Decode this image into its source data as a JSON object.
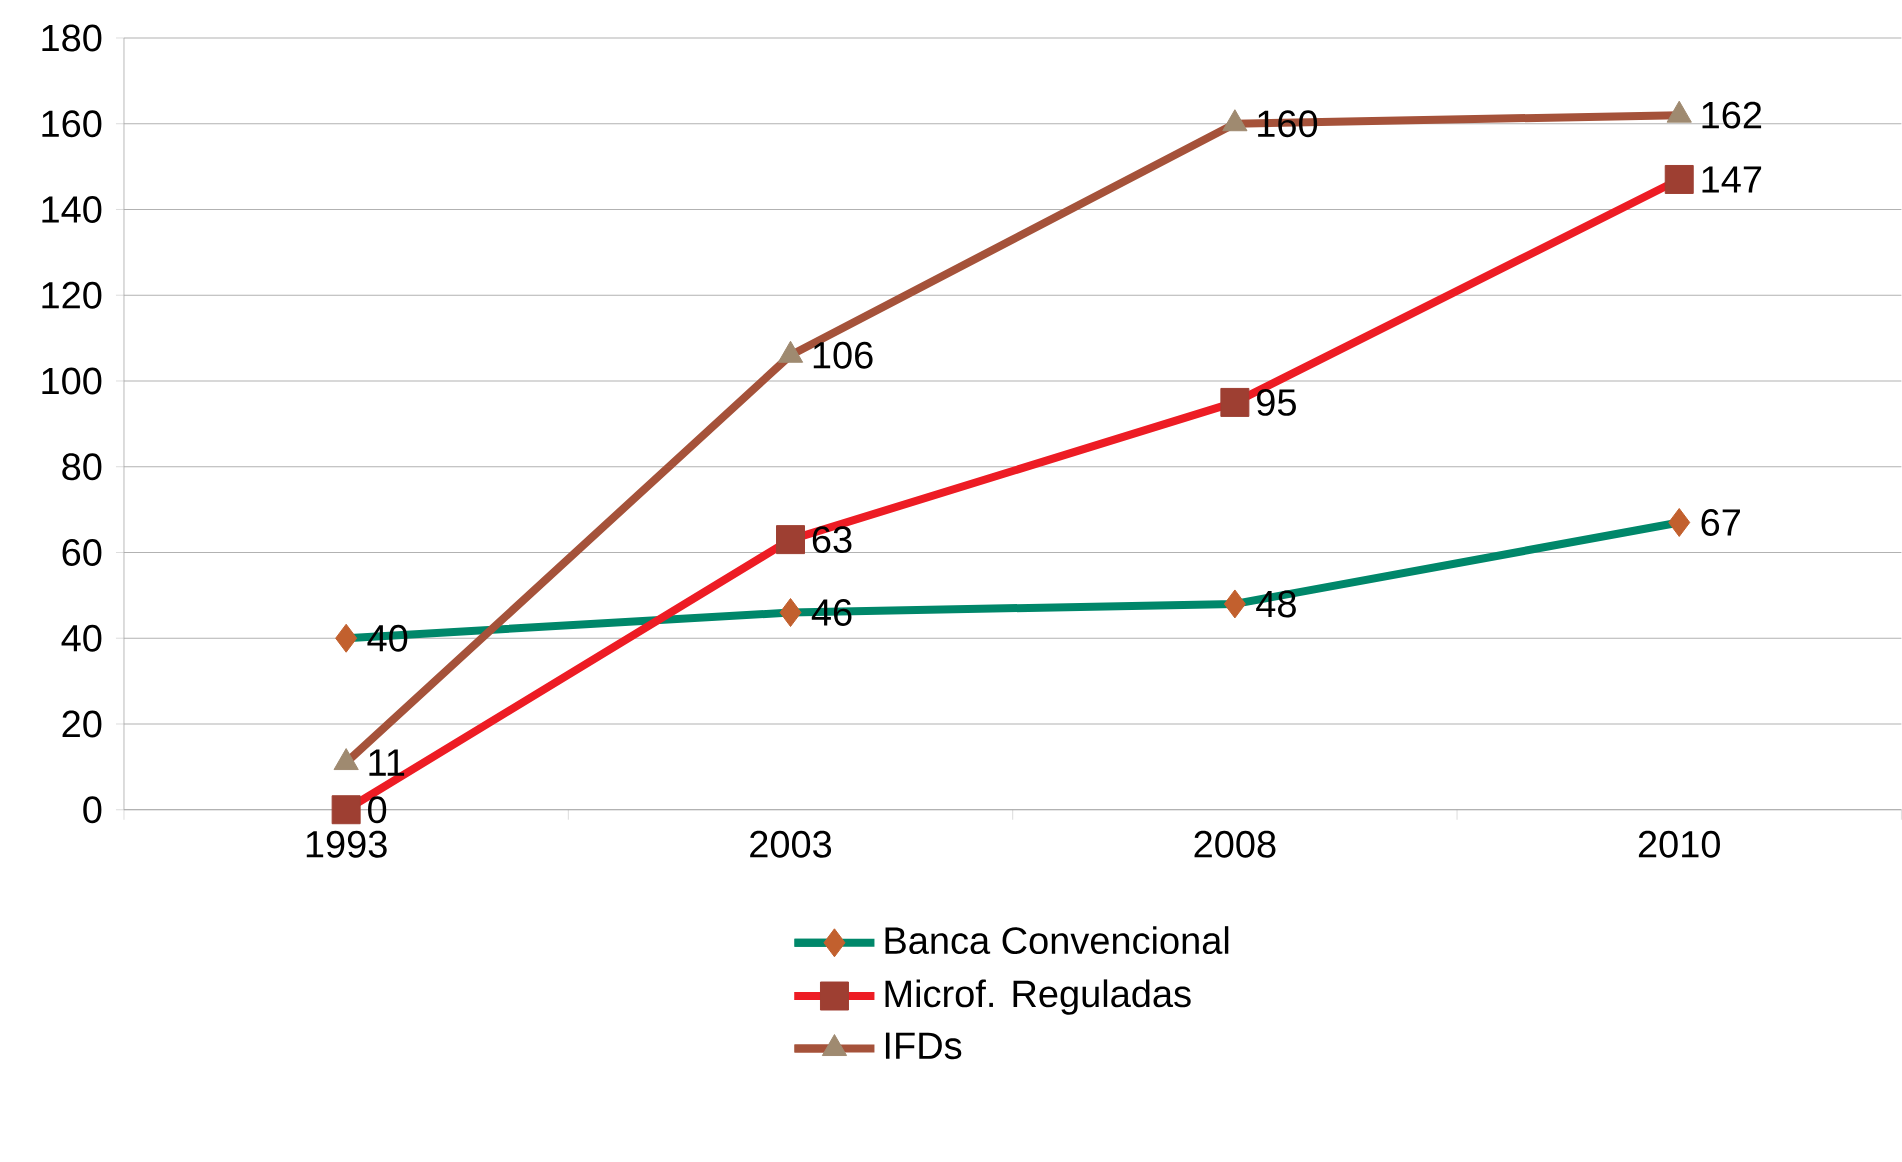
{
  "chart_data": {
    "type": "line",
    "categories": [
      "1993",
      "2003",
      "2008",
      "2010"
    ],
    "series": [
      {
        "name": "Banca Convencional",
        "color": "#00876a",
        "marker": "diamond",
        "values": [
          40,
          46,
          48,
          67
        ]
      },
      {
        "name": "Microf. Reguladas",
        "color": "#ed1c24",
        "marker": "square",
        "values": [
          0,
          63,
          95,
          147
        ]
      },
      {
        "name": "IFDs",
        "color": "#a5523a",
        "marker": "triangle",
        "values": [
          11,
          106,
          160,
          162
        ]
      }
    ],
    "ylim": [
      0,
      180
    ],
    "yticks": [
      0,
      20,
      40,
      60,
      80,
      100,
      120,
      140,
      160,
      180
    ],
    "grid": "y",
    "legend": "bottom",
    "data_labels": true
  }
}
